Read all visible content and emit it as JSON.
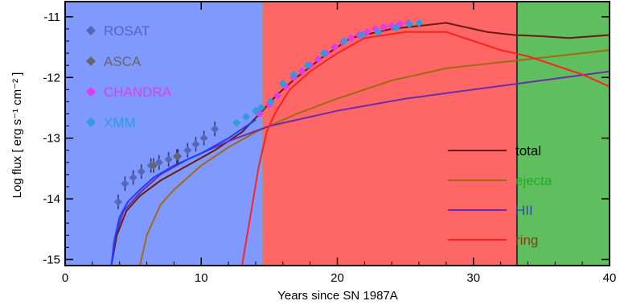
{
  "chart_data": {
    "type": "line",
    "title": "",
    "xlabel": "Years since SN 1987A",
    "ylabel": "Log flux [ erg s⁻¹ cm⁻² ]",
    "xlim": [
      0,
      40
    ],
    "ylim": [
      -15.1,
      -10.75
    ],
    "x_ticks": [
      0,
      10,
      20,
      30,
      40
    ],
    "y_ticks": [
      -15,
      -14,
      -13,
      -12,
      -11
    ],
    "grid": false,
    "regions": [
      {
        "x_from": 0,
        "x_to": 14.5,
        "color": "#7f99ff"
      },
      {
        "x_from": 14.5,
        "x_to": 33.2,
        "color": "#ff6666"
      },
      {
        "x_from": 33.2,
        "x_to": 40,
        "color": "#5fbf5f"
      }
    ],
    "series": [
      {
        "name": "total",
        "color": "#6b1a0f",
        "x": [
          3.4,
          3.8,
          4.5,
          5.5,
          7,
          9,
          11,
          13,
          14.5,
          15.5,
          17,
          19,
          21,
          24,
          28,
          31,
          33,
          35,
          37,
          40
        ],
        "y": [
          -15.1,
          -14.6,
          -14.2,
          -13.95,
          -13.7,
          -13.45,
          -13.2,
          -12.9,
          -12.55,
          -12.3,
          -12.0,
          -11.65,
          -11.35,
          -11.2,
          -11.1,
          -11.25,
          -11.3,
          -11.32,
          -11.35,
          -11.3
        ]
      },
      {
        "name": "ejecta",
        "color": "#a06a10",
        "x": [
          5.5,
          6,
          7,
          8,
          10,
          12,
          14,
          17,
          20,
          24,
          28,
          32,
          36,
          40
        ],
        "y": [
          -15.1,
          -14.6,
          -14.1,
          -13.85,
          -13.45,
          -13.15,
          -12.9,
          -12.6,
          -12.35,
          -12.05,
          -11.85,
          -11.75,
          -11.65,
          -11.55
        ]
      },
      {
        "name": "HII",
        "color": "#6f2ca8",
        "x": [
          3.4,
          3.7,
          4.3,
          5.5,
          7,
          9,
          12,
          15,
          20,
          25,
          30,
          35,
          40
        ],
        "y": [
          -15.1,
          -14.6,
          -14.2,
          -13.9,
          -13.6,
          -13.35,
          -13.05,
          -12.8,
          -12.55,
          -12.35,
          -12.2,
          -12.05,
          -11.9
        ]
      },
      {
        "name": "ring",
        "color": "#ff2020",
        "x": [
          13,
          13.6,
          14.2,
          14.8,
          15.4,
          16.5,
          18,
          20,
          22,
          25,
          28,
          30,
          32,
          34,
          36,
          38,
          40
        ],
        "y": [
          -15.1,
          -14.3,
          -13.5,
          -12.9,
          -12.6,
          -12.2,
          -11.9,
          -11.6,
          -11.35,
          -11.25,
          -11.25,
          -11.4,
          -11.55,
          -11.65,
          -11.8,
          -11.95,
          -12.15
        ]
      }
    ],
    "observations": [
      {
        "name": "ROSAT",
        "color": "#5566bb",
        "x": [
          3.9,
          4.4,
          5.0,
          5.6,
          6.3,
          6.9,
          7.6,
          8.3,
          9.0,
          9.6,
          10.2,
          11.0
        ],
        "y": [
          -14.05,
          -13.75,
          -13.65,
          -13.55,
          -13.45,
          -13.4,
          -13.35,
          -13.3,
          -13.2,
          -13.1,
          -13.0,
          -12.85
        ]
      },
      {
        "name": "ASCA",
        "color": "#666666",
        "x": [
          6.5,
          8.2
        ],
        "y": [
          -13.45,
          -13.3
        ]
      },
      {
        "name": "CHANDRA",
        "color": "#e13bf0",
        "x": [
          14.3,
          15.0,
          15.6,
          16.2,
          16.8,
          17.4,
          18.0,
          18.6,
          19.2,
          19.8,
          20.4,
          21.0,
          21.6,
          22.2,
          22.8,
          23.4,
          24.0,
          24.6,
          25.2
        ],
        "y": [
          -12.6,
          -12.45,
          -12.3,
          -12.15,
          -12.0,
          -11.9,
          -11.8,
          -11.7,
          -11.6,
          -11.5,
          -11.42,
          -11.35,
          -11.3,
          -11.25,
          -11.2,
          -11.17,
          -11.15,
          -11.12,
          -11.1
        ]
      },
      {
        "name": "XMM",
        "color": "#3399dd",
        "x": [
          12.6,
          13.3,
          14.0,
          14.4,
          15.1,
          16.0,
          16.8,
          17.8,
          19.0,
          20.5,
          21.8,
          23.0,
          24.3,
          25.3,
          26.0
        ],
        "y": [
          -12.75,
          -12.65,
          -12.55,
          -12.5,
          -12.4,
          -12.1,
          -11.95,
          -11.8,
          -11.6,
          -11.4,
          -11.3,
          -11.25,
          -11.18,
          -11.12,
          -11.1
        ]
      }
    ]
  }
}
